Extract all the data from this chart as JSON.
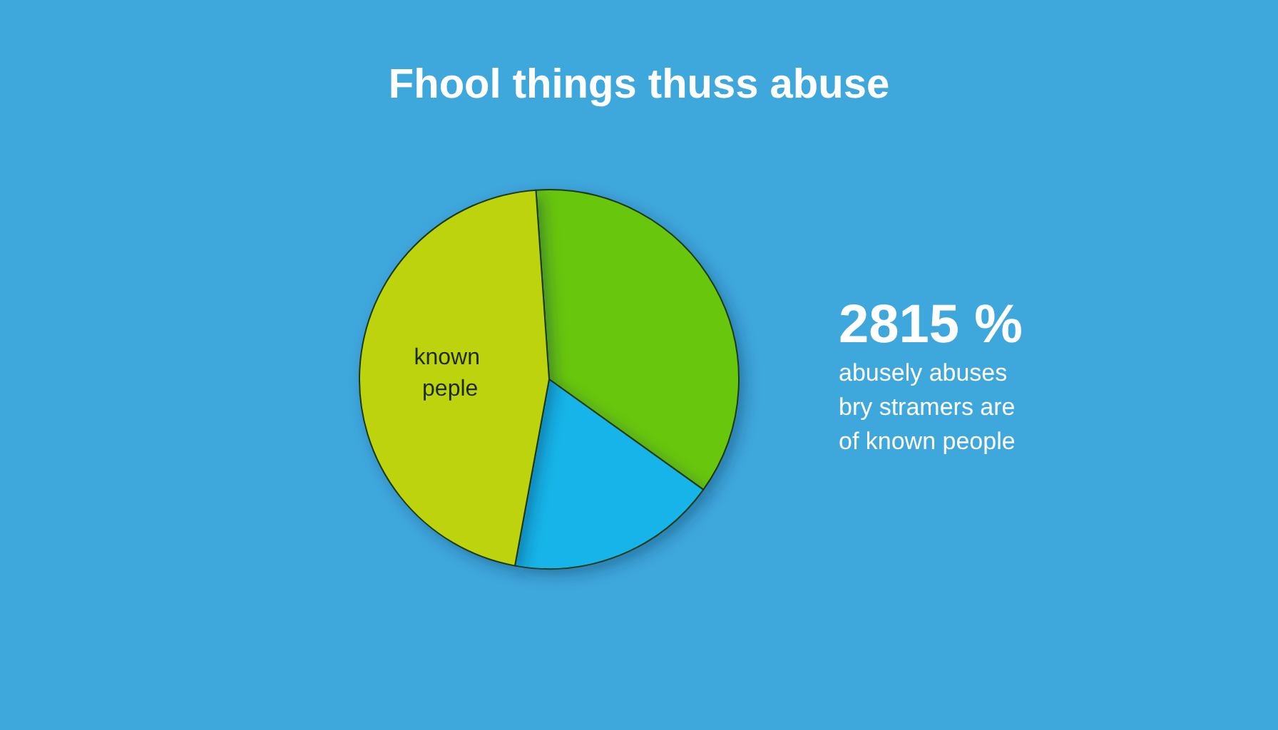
{
  "chart_data": {
    "type": "pie",
    "title": "Fhool things thuss abuse",
    "categories": [
      null,
      null,
      "known peple"
    ],
    "values": [
      36,
      18,
      46
    ],
    "colors": [
      "#67c60e",
      "#16b4e8",
      "#bdd30b"
    ],
    "annotations": [
      "2815 %",
      "abusely abuses bry stramers are of known people"
    ]
  }
}
